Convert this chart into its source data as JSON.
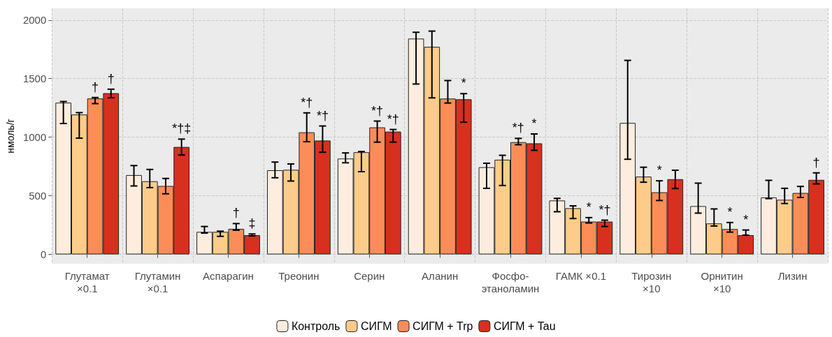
{
  "chart_data": {
    "type": "bar",
    "ylabel": "нмоль/г",
    "categories": [
      "Глутамат\n×0.1",
      "Глутамин\n×0.1",
      "Аспарагин",
      "Треонин",
      "Серин",
      "Аланин",
      "Фосфо-\nэтаноламин",
      "ГАМК ×0.1",
      "Тирозин\n×10",
      "Орнитин\n×10",
      "Лизин"
    ],
    "series": [
      {
        "name": "Контроль",
        "color": "#feedde",
        "values": [
          1295,
          677,
          192,
          718,
          818,
          1842,
          744,
          460,
          1122,
          412,
          486
        ],
        "errors": [
          [
            1117,
            1305
          ],
          [
            584,
            758
          ],
          [
            182,
            238
          ],
          [
            654,
            788
          ],
          [
            782,
            866
          ],
          [
            1454,
            1896
          ],
          [
            564,
            778
          ],
          [
            364,
            478
          ],
          [
            812,
            1656
          ],
          [
            352,
            608
          ],
          [
            476,
            632
          ]
        ],
        "value_labels": [
          null,
          null,
          null,
          null,
          null,
          null,
          null,
          null,
          null,
          null,
          null
        ]
      },
      {
        "name": "СИГМ",
        "color": "#fdcc8a",
        "values": [
          1194,
          624,
          192,
          722,
          872,
          1772,
          808,
          394,
          664,
          264,
          466
        ],
        "errors": [
          [
            992,
            1210
          ],
          [
            570,
            725
          ],
          [
            154,
            198
          ],
          [
            626,
            772
          ],
          [
            706,
            878
          ],
          [
            1336,
            1906
          ],
          [
            588,
            846
          ],
          [
            306,
            414
          ],
          [
            616,
            744
          ],
          [
            242,
            388
          ],
          [
            434,
            564
          ]
        ],
        "value_labels": [
          null,
          null,
          null,
          null,
          null,
          null,
          null,
          null,
          null,
          null,
          null
        ]
      },
      {
        "name": "СИГМ + Trp",
        "color": "#fc8d59",
        "values": [
          1331,
          584,
          218,
          1042,
          1084,
          1330,
          958,
          280,
          530,
          216,
          524
        ],
        "errors": [
          [
            1287,
            1339
          ],
          [
            517,
            648
          ],
          [
            206,
            263
          ],
          [
            962,
            1208
          ],
          [
            958,
            1138
          ],
          [
            1292,
            1484
          ],
          [
            936,
            990
          ],
          [
            268,
            314
          ],
          [
            460,
            628
          ],
          [
            190,
            272
          ],
          [
            486,
            580
          ]
        ],
        "value_labels": [
          "†",
          null,
          "†",
          "*†",
          "*†",
          null,
          "*†",
          "*",
          "*",
          "*",
          null
        ]
      },
      {
        "name": "СИГМ + Tau",
        "color": "#d7301f",
        "values": [
          1376,
          917,
          164,
          972,
          1048,
          1324,
          948,
          280,
          642,
          164,
          636
        ],
        "errors": [
          [
            1337,
            1410
          ],
          [
            848,
            984
          ],
          [
            158,
            174
          ],
          [
            872,
            1096
          ],
          [
            958,
            1066
          ],
          [
            1128,
            1372
          ],
          [
            888,
            1028
          ],
          [
            238,
            292
          ],
          [
            562,
            718
          ],
          [
            164,
            208
          ],
          [
            602,
            696
          ]
        ],
        "value_labels": [
          "†",
          "*†‡",
          "‡",
          "*†",
          "*†",
          "*",
          "*",
          "*†",
          null,
          "*",
          "†"
        ]
      }
    ],
    "ylim": [
      -80,
      2100
    ],
    "yticks": [
      0,
      500,
      1000,
      1500,
      2000
    ],
    "grid": true,
    "legend": "bottom"
  }
}
